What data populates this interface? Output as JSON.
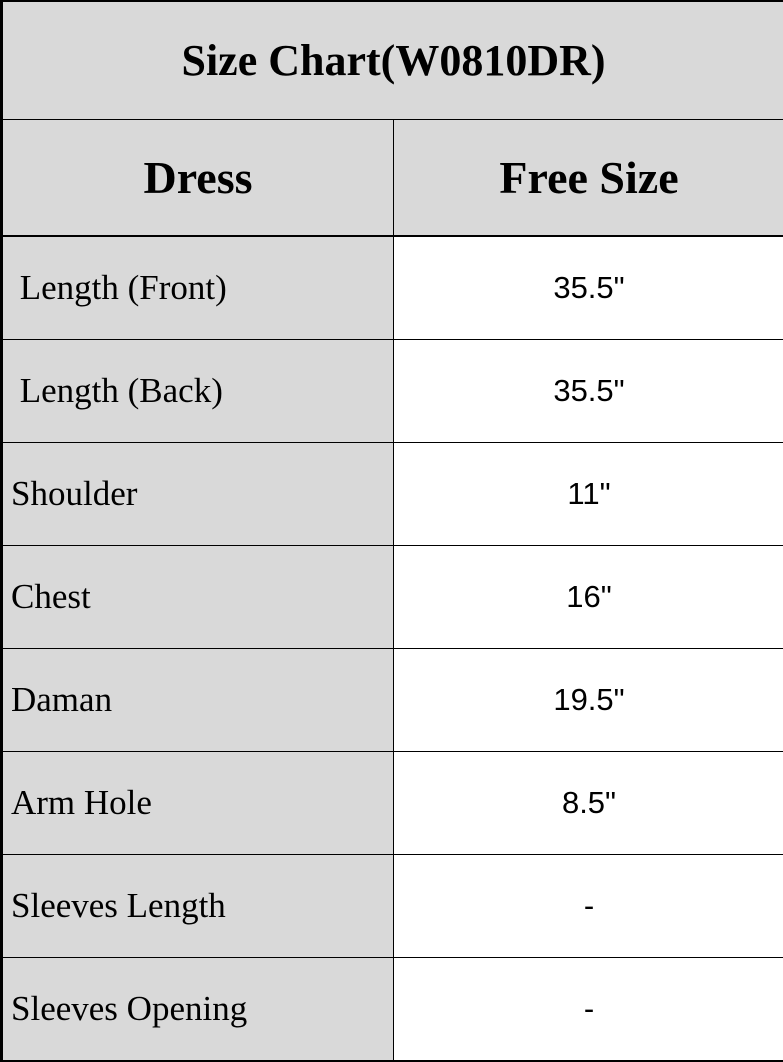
{
  "title": "Size Chart(W0810DR)",
  "columns": [
    "Dress",
    "Free Size"
  ],
  "rows": [
    {
      "label": " Length (Front)",
      "value": "35.5\""
    },
    {
      "label": " Length (Back)",
      "value": "35.5\""
    },
    {
      "label": "Shoulder",
      "value": "11\""
    },
    {
      "label": "Chest",
      "value": "16\""
    },
    {
      "label": "Daman",
      "value": "19.5\""
    },
    {
      "label": "Arm Hole",
      "value": "8.5\""
    },
    {
      "label": "Sleeves Length",
      "value": "-"
    },
    {
      "label": "Sleeves Opening",
      "value": "-"
    }
  ],
  "colors": {
    "header_bg": "#d9d9d9",
    "cell_bg": "#ffffff",
    "border": "#000000"
  }
}
